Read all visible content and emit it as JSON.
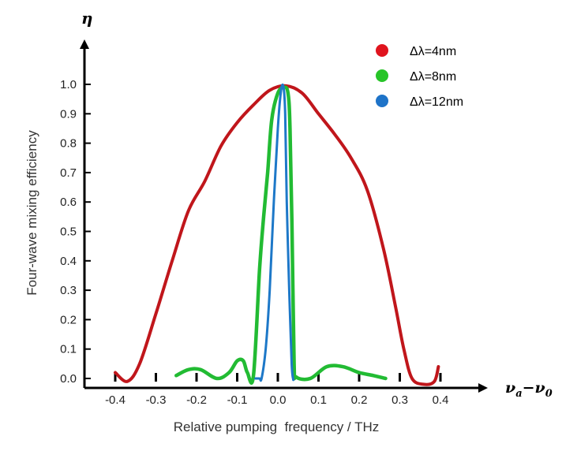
{
  "chart_data": {
    "type": "line",
    "ylabel": "Four-wave mixing efficiency",
    "xlabel": "Relative pumping  frequency / THz",
    "y_symbol": "η",
    "x_symbol": "νa−ν0",
    "xlim": [
      -0.4,
      0.5
    ],
    "ylim": [
      0,
      1.15
    ],
    "x_ticks": [
      "-0.4",
      "-0.3",
      "-0.2",
      "-0.1",
      "0.0",
      "0.1",
      "0.2",
      "0.3",
      "0.4"
    ],
    "y_ticks": [
      "0.0",
      "0.1",
      "0.2",
      "0.3",
      "0.4",
      "0.5",
      "0.6",
      "0.7",
      "0.8",
      "0.9",
      "1.0"
    ],
    "legend_position": "top-right",
    "series": [
      {
        "name": "Δλ=4nm",
        "color": "#c0161b",
        "points": [
          [
            -0.4,
            0.02
          ],
          [
            -0.37,
            -0.01
          ],
          [
            -0.34,
            0.05
          ],
          [
            -0.3,
            0.22
          ],
          [
            -0.26,
            0.4
          ],
          [
            -0.22,
            0.57
          ],
          [
            -0.18,
            0.67
          ],
          [
            -0.14,
            0.79
          ],
          [
            -0.1,
            0.87
          ],
          [
            -0.06,
            0.93
          ],
          [
            -0.02,
            0.98
          ],
          [
            0.02,
            0.995
          ],
          [
            0.06,
            0.97
          ],
          [
            0.1,
            0.9
          ],
          [
            0.14,
            0.83
          ],
          [
            0.18,
            0.75
          ],
          [
            0.22,
            0.64
          ],
          [
            0.26,
            0.44
          ],
          [
            0.29,
            0.24
          ],
          [
            0.31,
            0.1
          ],
          [
            0.33,
            0.0
          ],
          [
            0.36,
            -0.02
          ],
          [
            0.385,
            -0.01
          ],
          [
            0.395,
            0.04
          ]
        ]
      },
      {
        "name": "Δλ=8nm",
        "color": "#22bb33",
        "points": [
          [
            -0.25,
            0.01
          ],
          [
            -0.22,
            0.03
          ],
          [
            -0.19,
            0.03
          ],
          [
            -0.15,
            0.0
          ],
          [
            -0.12,
            0.02
          ],
          [
            -0.1,
            0.06
          ],
          [
            -0.085,
            0.06
          ],
          [
            -0.075,
            0.02
          ],
          [
            -0.06,
            0.01
          ],
          [
            -0.045,
            0.37
          ],
          [
            -0.035,
            0.55
          ],
          [
            -0.025,
            0.7
          ],
          [
            -0.015,
            0.88
          ],
          [
            0.0,
            0.97
          ],
          [
            0.015,
            0.99
          ],
          [
            0.025,
            0.97
          ],
          [
            0.03,
            0.85
          ],
          [
            0.035,
            0.5
          ],
          [
            0.04,
            0.05
          ],
          [
            0.045,
            0.005
          ],
          [
            0.08,
            0.0
          ],
          [
            0.12,
            0.04
          ],
          [
            0.16,
            0.04
          ],
          [
            0.2,
            0.02
          ],
          [
            0.235,
            0.01
          ],
          [
            0.265,
            0.0
          ]
        ]
      },
      {
        "name": "Δλ=12nm",
        "color": "#1d78c8",
        "points": [
          [
            -0.055,
            0.0
          ],
          [
            -0.045,
            0.0
          ],
          [
            -0.04,
            0.0
          ],
          [
            -0.03,
            0.1
          ],
          [
            -0.02,
            0.3
          ],
          [
            -0.01,
            0.6
          ],
          [
            0.0,
            0.85
          ],
          [
            0.008,
            0.98
          ],
          [
            0.014,
            0.99
          ],
          [
            0.018,
            0.9
          ],
          [
            0.022,
            0.6
          ],
          [
            0.028,
            0.3
          ],
          [
            0.034,
            0.05
          ],
          [
            0.038,
            -0.005
          ]
        ]
      }
    ]
  },
  "legend": [
    {
      "label": "Δλ=4nm",
      "color": "#e0141e"
    },
    {
      "label": "Δλ=8nm",
      "color": "#27c428"
    },
    {
      "label": "Δλ=12nm",
      "color": "#1e73c8"
    }
  ]
}
